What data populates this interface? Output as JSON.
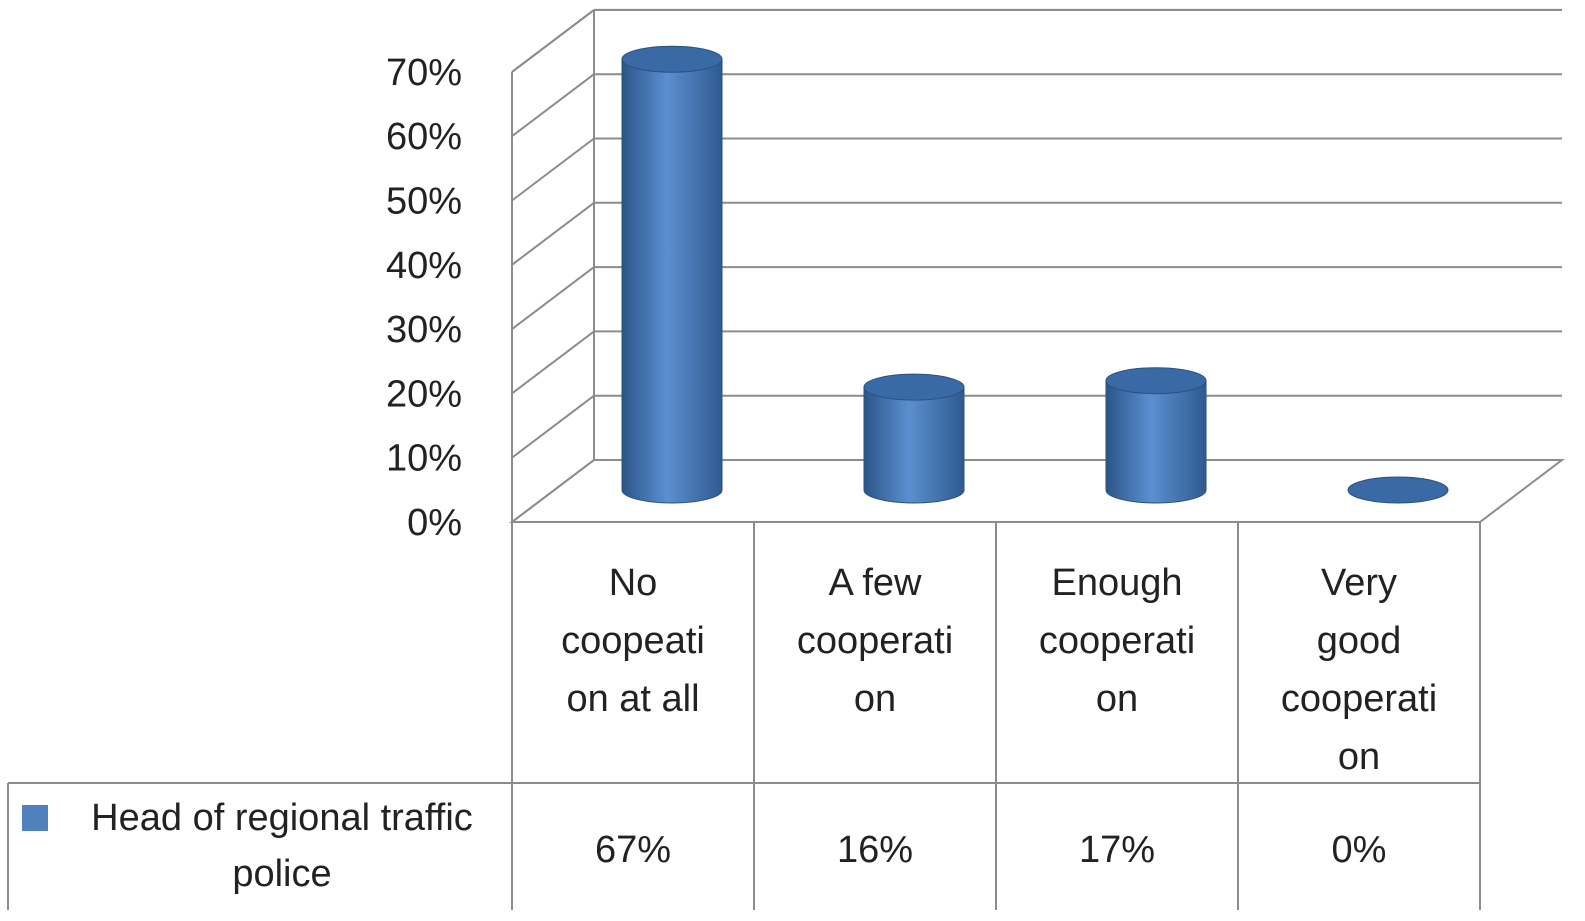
{
  "chart_data": {
    "type": "bar",
    "shape": "3d-cylinder",
    "categories": [
      [
        "No",
        "coopeati",
        "on at all"
      ],
      [
        "A few",
        "cooperati",
        "on"
      ],
      [
        "Enough",
        "cooperati",
        "on"
      ],
      [
        "Very",
        "good",
        "cooperati",
        "on"
      ]
    ],
    "series": [
      {
        "name": [
          "Head of regional traffic",
          "police"
        ],
        "values": [
          67,
          16,
          17,
          0
        ],
        "value_labels": [
          "67%",
          "16%",
          "17%",
          "0%"
        ],
        "color": "#4F81BD"
      }
    ],
    "ylim": [
      0,
      70
    ],
    "yticks": [
      "0%",
      "10%",
      "20%",
      "30%",
      "40%",
      "50%",
      "60%",
      "70%"
    ],
    "grid": true,
    "data_table": true
  }
}
